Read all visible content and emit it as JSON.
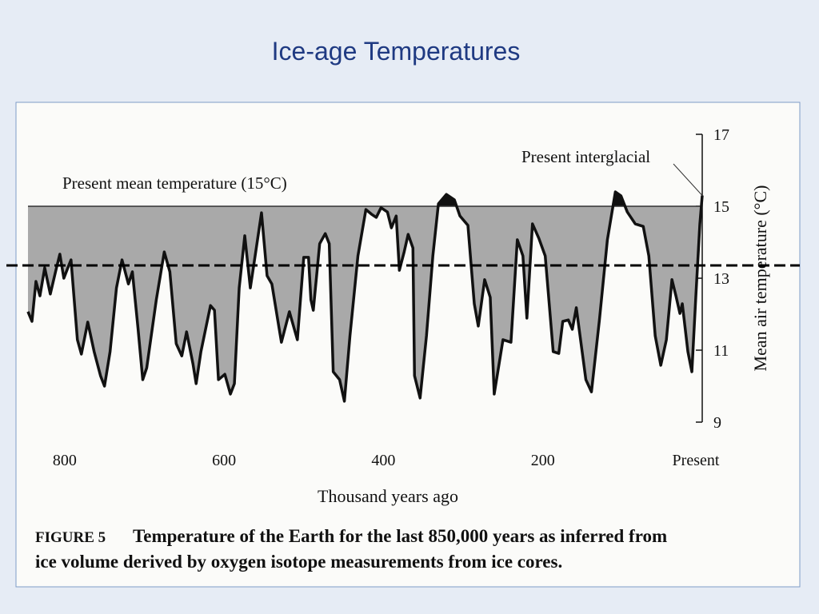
{
  "slide_title": "Ice-age Temperatures",
  "chart_data": {
    "type": "line",
    "color": "#111111",
    "fill_color": "#a9a9a9",
    "x_label": "Thousand years ago",
    "y_label": "Mean air temperature (°C)",
    "reference": {
      "label": "Present mean temperature (15°C)",
      "value": 15
    },
    "annotation": "Present interglacial",
    "xlim": [
      850,
      0
    ],
    "xticks": [
      800,
      600,
      400,
      200,
      {
        "value": 0,
        "label": "Present"
      }
    ],
    "ylim": [
      9,
      17
    ],
    "yticks": [
      9,
      11,
      13,
      15,
      17
    ],
    "x": [
      846,
      841,
      836,
      831,
      825,
      818,
      811,
      806,
      801,
      796,
      792,
      784,
      779,
      771,
      763,
      755,
      750,
      743,
      735,
      728,
      720,
      715,
      708,
      702,
      697,
      685,
      675,
      668,
      660,
      653,
      647,
      639,
      635,
      629,
      617,
      612,
      607,
      599,
      592,
      587,
      581,
      574,
      567,
      561,
      553,
      546,
      540,
      531,
      528,
      518,
      508,
      500,
      494,
      491,
      488,
      480,
      473,
      468,
      463,
      455,
      449,
      442,
      432,
      422,
      415,
      409,
      403,
      395,
      390,
      384,
      380,
      374,
      369,
      363,
      361,
      354,
      346,
      338,
      331,
      321,
      311,
      304,
      294,
      286,
      281,
      273,
      266,
      261,
      250,
      240,
      232,
      225,
      220,
      213,
      205,
      197,
      187,
      180,
      175,
      168,
      163,
      158,
      146,
      139,
      129,
      119,
      109,
      102,
      94,
      84,
      74,
      67,
      59,
      52,
      45,
      38,
      33,
      28,
      25,
      18,
      13,
      8,
      3,
      0
    ],
    "values": [
      12.07,
      11.8,
      12.91,
      12.51,
      13.29,
      12.56,
      13.22,
      13.67,
      13.0,
      13.29,
      13.51,
      11.29,
      10.89,
      11.78,
      10.96,
      10.29,
      10.0,
      10.96,
      12.73,
      13.51,
      12.84,
      13.18,
      11.62,
      10.18,
      10.51,
      12.4,
      13.73,
      13.18,
      11.18,
      10.84,
      11.51,
      10.62,
      10.07,
      10.96,
      12.24,
      12.11,
      10.18,
      10.33,
      9.78,
      10.07,
      12.73,
      14.18,
      12.73,
      13.62,
      14.82,
      13.07,
      12.84,
      11.62,
      11.22,
      12.07,
      11.29,
      13.58,
      13.58,
      12.4,
      12.11,
      13.96,
      14.24,
      13.96,
      10.4,
      10.18,
      9.58,
      11.4,
      13.62,
      14.91,
      14.78,
      14.69,
      14.96,
      14.84,
      14.4,
      14.73,
      13.22,
      13.73,
      14.22,
      13.84,
      10.29,
      9.67,
      11.4,
      13.62,
      15.07,
      15.33,
      15.18,
      14.73,
      14.47,
      12.29,
      11.67,
      12.96,
      12.47,
      9.78,
      11.29,
      11.22,
      14.07,
      13.62,
      11.89,
      14.51,
      14.11,
      13.62,
      10.96,
      10.91,
      11.8,
      11.84,
      11.58,
      12.18,
      10.18,
      9.84,
      11.84,
      14.07,
      15.4,
      15.29,
      14.84,
      14.51,
      14.44,
      13.62,
      11.4,
      10.58,
      11.29,
      12.96,
      12.51,
      12.02,
      12.29,
      10.96,
      10.4,
      12.51,
      14.5,
      15.3
    ]
  },
  "caption_label": "FIGURE 5",
  "caption_lines": [
    "Temperature of the Earth for the last 850,000 years as inferred from",
    "ice volume derived by oxygen isotope measurements from ice cores."
  ]
}
